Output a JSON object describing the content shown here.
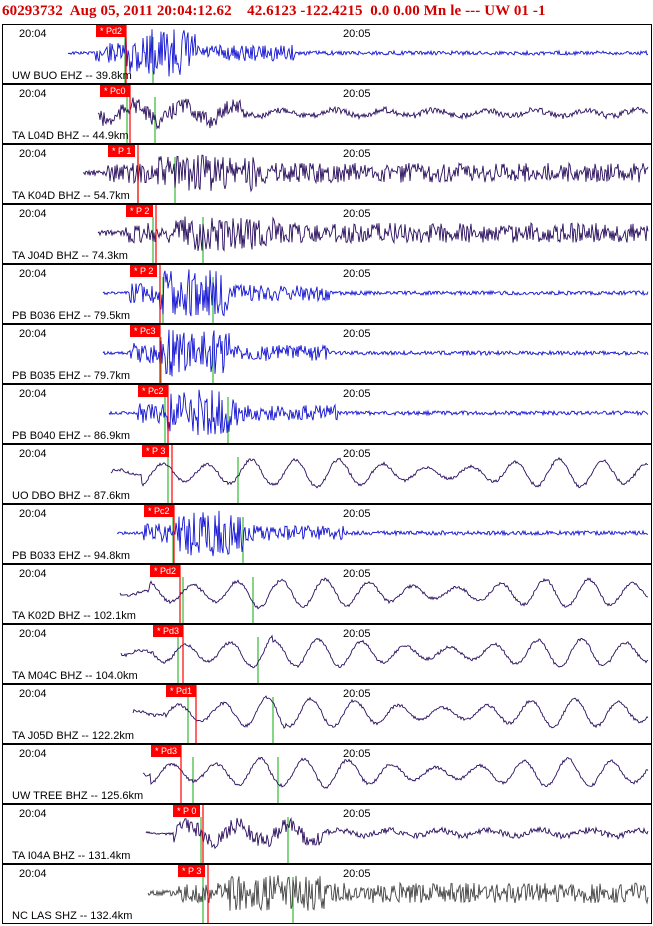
{
  "header": {
    "event_id": "60293732",
    "datetime": "Aug 05, 2011 20:04:12.62",
    "location": "42.6123 -122.4215",
    "extra": "0.0 0.00 Mn le --- UW 01 -1"
  },
  "time_labels": {
    "start": "20:04",
    "end": "20:05"
  },
  "colors": {
    "blue": "#1414d2",
    "purple": "#2a0f5e",
    "gray": "#444444",
    "pick_box": "#ff0000",
    "pick_line": "#ff0000",
    "green_marker": "#33bb33",
    "title": "#d40000"
  },
  "traces": [
    {
      "label": "UW BUO EHZ -- 39.8km",
      "pick": "* Pd2",
      "color": "blue",
      "style": "burst"
    },
    {
      "label": "TA L04D BHZ -- 44.9km",
      "pick": "* Pc0",
      "color": "purple",
      "style": "wave"
    },
    {
      "label": "TA K04D BHZ -- 54.7km",
      "pick": "* P 1",
      "color": "purple",
      "style": "noisy"
    },
    {
      "label": "TA J04D BHZ -- 74.3km",
      "pick": "* P 2",
      "color": "purple",
      "style": "noisy"
    },
    {
      "label": "PB B036 EHZ -- 79.5km",
      "pick": "* P 2",
      "color": "blue",
      "style": "burst"
    },
    {
      "label": "PB B035 EHZ -- 79.7km",
      "pick": "* Pc3",
      "color": "blue",
      "style": "burst"
    },
    {
      "label": "PB B040 EHZ -- 86.9km",
      "pick": "* Pc2",
      "color": "blue",
      "style": "burst"
    },
    {
      "label": "UO DBO BHZ -- 87.6km",
      "pick": "* P 3",
      "color": "purple",
      "style": "lowfreq"
    },
    {
      "label": "PB B033 EHZ -- 94.8km",
      "pick": "* Pc2",
      "color": "blue",
      "style": "burst"
    },
    {
      "label": "TA K02D BHZ -- 102.1km",
      "pick": "* Pd2",
      "color": "purple",
      "style": "lowfreq"
    },
    {
      "label": "TA M04C BHZ -- 104.0km",
      "pick": "* Pd3",
      "color": "purple",
      "style": "lowfreq"
    },
    {
      "label": "TA J05D BHZ -- 122.2km",
      "pick": "* Pd1",
      "color": "purple",
      "style": "lowfreq"
    },
    {
      "label": "UW TREE BHZ -- 125.6km",
      "pick": "* Pd3",
      "color": "purple",
      "style": "lowfreq"
    },
    {
      "label": "TA I04A BHZ -- 131.4km",
      "pick": "* P 0",
      "color": "purple",
      "style": "wave"
    },
    {
      "label": "NC LAS SHZ -- 132.4km",
      "pick": "* P 3",
      "color": "gray",
      "style": "noisy"
    }
  ]
}
